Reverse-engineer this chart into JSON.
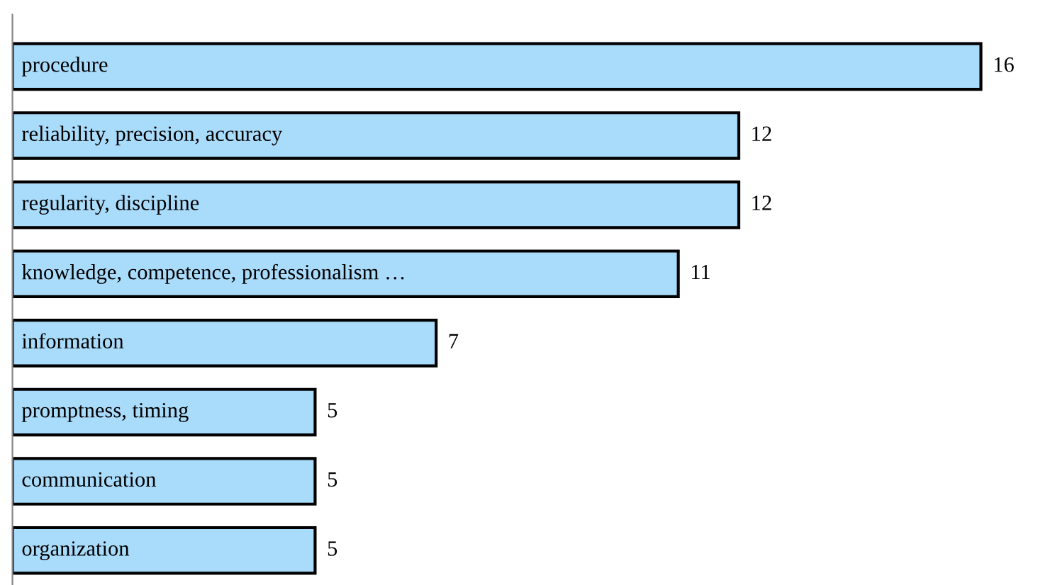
{
  "chart_data": {
    "type": "bar",
    "orientation": "horizontal",
    "categories": [
      "procedure",
      "reliability, precision, accuracy",
      "regularity, discipline",
      "knowledge, competence, professionalism …",
      "information",
      "promptness, timing",
      "communication",
      "organization"
    ],
    "values": [
      16,
      12,
      12,
      11,
      7,
      5,
      5,
      5
    ],
    "color": "#a9dbfb",
    "data_labels": true
  }
}
